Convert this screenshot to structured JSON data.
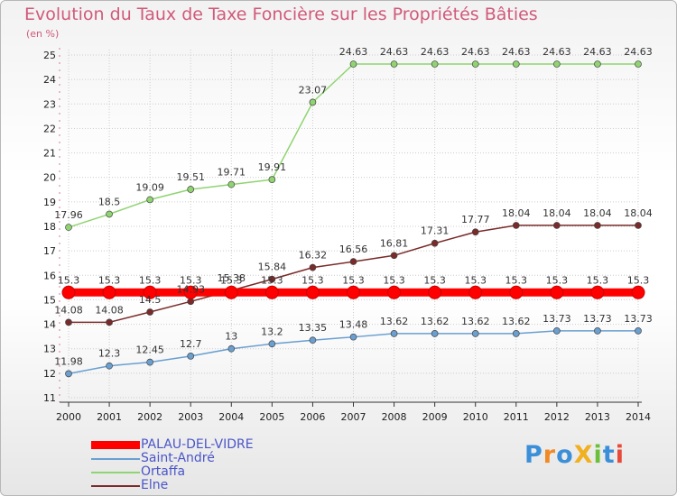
{
  "title": "Evolution du Taux de Taxe Foncière sur les Propriétés Bâties",
  "unit": "(en %)",
  "logo_text": "ProXiti",
  "chart_data": {
    "type": "line",
    "title": "Evolution du Taux de Taxe Foncière sur les Propriétés Bâties",
    "ylabel": "(en %)",
    "xlabel": "",
    "x": [
      "2000",
      "2001",
      "2002",
      "2003",
      "2004",
      "2005",
      "2006",
      "2007",
      "2008",
      "2009",
      "2010",
      "2011",
      "2012",
      "2013",
      "2014"
    ],
    "ylim": [
      11,
      25
    ],
    "yticks": [
      11,
      12,
      13,
      14,
      15,
      16,
      17,
      18,
      19,
      20,
      21,
      22,
      23,
      24,
      25
    ],
    "grid": true,
    "legend_position": "bottom-left",
    "series": [
      {
        "name": "PALAU-DEL-VIDRE",
        "color": "#ff0000",
        "values": [
          15.3,
          15.3,
          15.3,
          15.3,
          15.3,
          15.3,
          15.3,
          15.3,
          15.3,
          15.3,
          15.3,
          15.3,
          15.3,
          15.3,
          15.3
        ],
        "labels": [
          "15.3",
          "15.3",
          "15.3",
          "15.3",
          "15.3",
          "15.3",
          "15.3",
          "15.3",
          "15.3",
          "15.3",
          "15.3",
          "15.3",
          "15.3",
          "15.3",
          "15.3"
        ]
      },
      {
        "name": "Saint-André",
        "color": "#6a9fd0",
        "values": [
          11.98,
          12.3,
          12.45,
          12.7,
          13,
          13.2,
          13.35,
          13.48,
          13.62,
          13.62,
          13.62,
          13.62,
          13.73,
          13.73,
          13.73
        ],
        "labels": [
          "11.98",
          "12.3",
          "12.45",
          "12.7",
          "13",
          "13.2",
          "13.35",
          "13.48",
          "13.62",
          "13.62",
          "13.62",
          "13.62",
          "13.73",
          "13.73",
          "13.73"
        ]
      },
      {
        "name": "Ortaffa",
        "color": "#8fd470",
        "values": [
          17.96,
          18.5,
          19.09,
          19.51,
          19.71,
          19.91,
          23.07,
          24.63,
          24.63,
          24.63,
          24.63,
          24.63,
          24.63,
          24.63,
          24.63
        ],
        "labels": [
          "17.96",
          "18.5",
          "19.09",
          "19.51",
          "19.71",
          "19.91",
          "23.07",
          "24.63",
          "24.63",
          "24.63",
          "24.63",
          "24.63",
          "24.63",
          "24.63",
          "24.63"
        ]
      },
      {
        "name": "Elne",
        "color": "#7a2a2a",
        "values": [
          14.08,
          14.08,
          14.5,
          14.93,
          15.38,
          15.84,
          16.32,
          16.56,
          16.81,
          17.31,
          17.77,
          18.04,
          18.04,
          18.04,
          18.04
        ],
        "labels": [
          "14.08",
          "14.08",
          "14.5",
          "14.93",
          "15.38",
          "15.84",
          "16.32",
          "16.56",
          "16.81",
          "17.31",
          "17.77",
          "18.04",
          "18.04",
          "18.04",
          "18.04"
        ]
      }
    ]
  }
}
